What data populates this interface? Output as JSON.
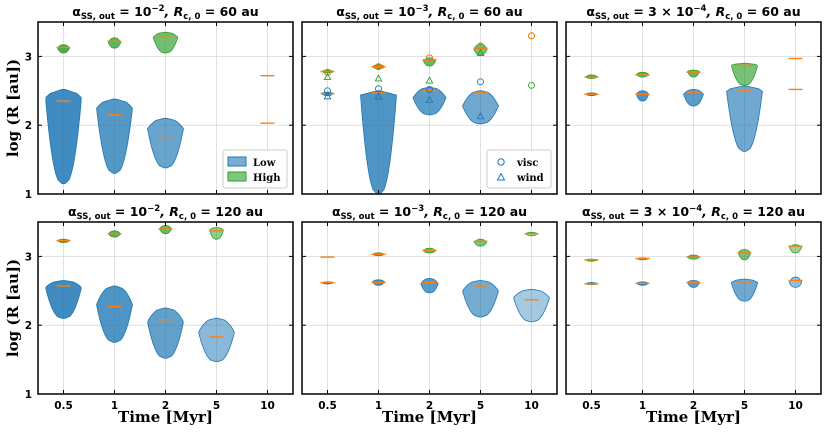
{
  "colors": {
    "low": "#1f77b4",
    "high": "#2ca02c",
    "median": "#ff7f0e",
    "grid": "#d9d9d9",
    "frame": "#000000"
  },
  "chart_data": {
    "type": "violin",
    "xlabel": "Time [Myr]",
    "ylabel": "log (R [au])",
    "ylim": [
      1,
      3.5
    ],
    "yticks": [
      1,
      2,
      3
    ],
    "categories": [
      "0.5",
      "1",
      "2",
      "5",
      "10"
    ],
    "panels": [
      {
        "title": {
          "pre": "α",
          "sub": "SS, out",
          "mid": " = 10",
          "sup": "−2",
          "post": ", R",
          "sub2": "c, 0",
          "end": " = 60 au"
        },
        "low": [
          {
            "min": 1.15,
            "max": 2.52,
            "median": 2.35,
            "widest": 2.4,
            "alpha": 1.0
          },
          {
            "min": 1.3,
            "max": 2.38,
            "median": 2.15,
            "widest": 2.25,
            "alpha": 0.85
          },
          {
            "min": 1.38,
            "max": 2.1,
            "median": 1.82,
            "widest": 1.95,
            "alpha": 0.7
          },
          null,
          {
            "min": 2.03,
            "max": 2.03,
            "median": 2.03,
            "widest": 2.03,
            "alpha": 0.5
          }
        ],
        "high": [
          {
            "min": 3.05,
            "max": 3.17,
            "median": 3.13,
            "widest": 3.12,
            "alpha": 1.0
          },
          {
            "min": 3.12,
            "max": 3.27,
            "median": 3.22,
            "widest": 3.2,
            "alpha": 0.85
          },
          {
            "min": 3.05,
            "max": 3.35,
            "median": 3.3,
            "widest": 3.28,
            "alpha": 0.7
          },
          null,
          {
            "min": 2.72,
            "max": 2.72,
            "median": 2.72,
            "widest": 2.72,
            "alpha": 0.5
          }
        ],
        "legend": {
          "type": "patch",
          "position": "lower-right",
          "items": [
            "Low",
            "High"
          ]
        }
      },
      {
        "title": {
          "pre": "α",
          "sub": "SS, out",
          "mid": " = 10",
          "sup": "−3",
          "post": ", R",
          "sub2": "c, 0",
          "end": " = 60 au"
        },
        "low": [
          {
            "min": 2.43,
            "max": 2.48,
            "median": 2.46,
            "widest": 2.46,
            "alpha": 1.0
          },
          {
            "min": 1.0,
            "max": 2.5,
            "median": 2.47,
            "widest": 2.44,
            "alpha": 0.9
          },
          {
            "min": 2.15,
            "max": 2.55,
            "median": 2.5,
            "widest": 2.4,
            "alpha": 0.8
          },
          {
            "min": 2.02,
            "max": 2.5,
            "median": 2.48,
            "widest": 2.28,
            "alpha": 0.65
          },
          null
        ],
        "high": [
          {
            "min": 2.76,
            "max": 2.8,
            "median": 2.78,
            "widest": 2.78,
            "alpha": 1.0
          },
          {
            "min": 2.82,
            "max": 2.88,
            "median": 2.85,
            "widest": 2.85,
            "alpha": 0.9
          },
          {
            "min": 2.86,
            "max": 2.98,
            "median": 2.95,
            "widest": 2.93,
            "alpha": 0.8
          },
          {
            "min": 3.02,
            "max": 3.18,
            "median": 3.12,
            "widest": 3.1,
            "alpha": 0.65
          },
          null
        ],
        "circles": [
          [
            2.5,
            2.77
          ],
          [
            2.53,
            2.85
          ],
          [
            2.52,
            2.98
          ],
          [
            2.63,
            3.15
          ],
          [
            2.58,
            3.3
          ]
        ],
        "triangles": [
          [
            2.42,
            2.7
          ],
          [
            2.42,
            2.68
          ],
          [
            2.37,
            2.65
          ],
          [
            2.13,
            3.05
          ],
          []
        ],
        "legend": {
          "type": "marker",
          "position": "lower-right",
          "items": [
            "visc",
            "wind"
          ]
        }
      },
      {
        "title": {
          "pre": "α",
          "sub": "SS, out",
          "mid": " = 3 × 10",
          "sup": "−4",
          "post": ", R",
          "sub2": "c, 0",
          "end": " = 60 au"
        },
        "low": [
          {
            "min": 2.43,
            "max": 2.47,
            "median": 2.45,
            "widest": 2.45,
            "alpha": 1.0
          },
          {
            "min": 2.35,
            "max": 2.5,
            "median": 2.45,
            "widest": 2.45,
            "alpha": 0.9
          },
          {
            "min": 2.28,
            "max": 2.52,
            "median": 2.48,
            "widest": 2.45,
            "alpha": 0.8
          },
          {
            "min": 1.62,
            "max": 2.57,
            "median": 2.5,
            "widest": 2.5,
            "alpha": 0.65
          },
          {
            "min": 2.52,
            "max": 2.52,
            "median": 2.52,
            "widest": 2.52,
            "alpha": 0.5
          }
        ],
        "high": [
          {
            "min": 2.68,
            "max": 2.73,
            "median": 2.7,
            "widest": 2.7,
            "alpha": 1.0
          },
          {
            "min": 2.7,
            "max": 2.77,
            "median": 2.73,
            "widest": 2.74,
            "alpha": 0.9
          },
          {
            "min": 2.7,
            "max": 2.8,
            "median": 2.77,
            "widest": 2.78,
            "alpha": 0.8
          },
          {
            "min": 2.58,
            "max": 2.9,
            "median": 2.87,
            "widest": 2.87,
            "alpha": 0.65
          },
          {
            "min": 2.97,
            "max": 2.97,
            "median": 2.97,
            "widest": 2.97,
            "alpha": 0.5
          }
        ]
      },
      {
        "title": {
          "pre": "α",
          "sub": "SS, out",
          "mid": " = 10",
          "sup": "−2",
          "post": ", R",
          "sub2": "c, 0",
          "end": " = 120 au"
        },
        "low": [
          {
            "min": 2.1,
            "max": 2.65,
            "median": 2.57,
            "widest": 2.55,
            "alpha": 1.0
          },
          {
            "min": 1.75,
            "max": 2.57,
            "median": 2.27,
            "widest": 2.3,
            "alpha": 0.9
          },
          {
            "min": 1.52,
            "max": 2.25,
            "median": 2.08,
            "widest": 2.05,
            "alpha": 0.75
          },
          {
            "min": 1.47,
            "max": 2.1,
            "median": 1.83,
            "widest": 1.9,
            "alpha": 0.45
          },
          null
        ],
        "high": [
          {
            "min": 3.2,
            "max": 3.25,
            "median": 3.23,
            "widest": 3.23,
            "alpha": 1.0
          },
          {
            "min": 3.28,
            "max": 3.37,
            "median": 3.33,
            "widest": 3.33,
            "alpha": 0.9
          },
          {
            "min": 3.33,
            "max": 3.45,
            "median": 3.4,
            "widest": 3.4,
            "alpha": 0.8
          },
          {
            "min": 3.25,
            "max": 3.42,
            "median": 3.37,
            "widest": 3.38,
            "alpha": 0.45
          },
          null
        ]
      },
      {
        "title": {
          "pre": "α",
          "sub": "SS, out",
          "mid": " = 10",
          "sup": "−3",
          "post": ", R",
          "sub2": "c, 0",
          "end": " = 120 au"
        },
        "low": [
          {
            "min": 2.6,
            "max": 2.63,
            "median": 2.62,
            "widest": 2.62,
            "alpha": 1.0
          },
          {
            "min": 2.58,
            "max": 2.66,
            "median": 2.62,
            "widest": 2.63,
            "alpha": 0.9
          },
          {
            "min": 2.47,
            "max": 2.68,
            "median": 2.62,
            "widest": 2.6,
            "alpha": 0.8
          },
          {
            "min": 2.12,
            "max": 2.65,
            "median": 2.57,
            "widest": 2.5,
            "alpha": 0.6
          },
          {
            "min": 2.05,
            "max": 2.52,
            "median": 2.37,
            "widest": 2.4,
            "alpha": 0.25
          }
        ],
        "high": [
          {
            "min": 2.98,
            "max": 3.0,
            "median": 2.99,
            "widest": 2.99,
            "alpha": 1.0
          },
          {
            "min": 3.01,
            "max": 3.05,
            "median": 3.03,
            "widest": 3.03,
            "alpha": 0.9
          },
          {
            "min": 3.05,
            "max": 3.12,
            "median": 3.09,
            "widest": 3.08,
            "alpha": 0.8
          },
          {
            "min": 3.15,
            "max": 3.25,
            "median": 3.22,
            "widest": 3.2,
            "alpha": 0.6
          },
          {
            "min": 3.3,
            "max": 3.35,
            "median": 3.33,
            "widest": 3.33,
            "alpha": 0.25
          }
        ]
      },
      {
        "title": {
          "pre": "α",
          "sub": "SS, out",
          "mid": " = 3 × 10",
          "sup": "−4",
          "post": ", R",
          "sub2": "c, 0",
          "end": " = 120 au"
        },
        "low": [
          {
            "min": 2.59,
            "max": 2.62,
            "median": 2.6,
            "widest": 2.6,
            "alpha": 1.0
          },
          {
            "min": 2.58,
            "max": 2.63,
            "median": 2.61,
            "widest": 2.61,
            "alpha": 0.9
          },
          {
            "min": 2.55,
            "max": 2.65,
            "median": 2.62,
            "widest": 2.62,
            "alpha": 0.8
          },
          {
            "min": 2.35,
            "max": 2.67,
            "median": 2.63,
            "widest": 2.62,
            "alpha": 0.65
          },
          {
            "min": 2.55,
            "max": 2.7,
            "median": 2.65,
            "widest": 2.62,
            "alpha": 0.35
          }
        ],
        "high": [
          {
            "min": 2.93,
            "max": 2.96,
            "median": 2.95,
            "widest": 2.95,
            "alpha": 1.0
          },
          {
            "min": 2.95,
            "max": 2.98,
            "median": 2.97,
            "widest": 2.97,
            "alpha": 0.9
          },
          {
            "min": 2.96,
            "max": 3.02,
            "median": 2.99,
            "widest": 2.99,
            "alpha": 0.8
          },
          {
            "min": 2.95,
            "max": 3.1,
            "median": 3.05,
            "widest": 3.05,
            "alpha": 0.65
          },
          {
            "min": 3.05,
            "max": 3.17,
            "median": 3.15,
            "widest": 3.13,
            "alpha": 0.35
          }
        ]
      }
    ]
  }
}
